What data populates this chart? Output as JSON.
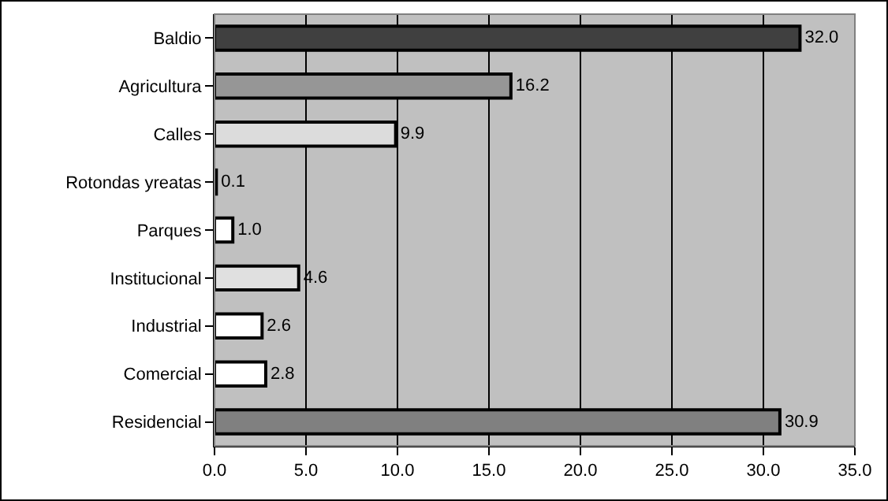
{
  "chart_data": {
    "type": "bar",
    "orientation": "horizontal",
    "categories": [
      "Baldio",
      "Agricultura",
      "Calles",
      "Rotondas yreatas",
      "Parques",
      "Institucional",
      "Industrial",
      "Comercial",
      "Residencial"
    ],
    "values": [
      32.0,
      16.2,
      9.9,
      0.1,
      1.0,
      4.6,
      2.6,
      2.8,
      30.9
    ],
    "colors": [
      "#404040",
      "#969696",
      "#dcdcdc",
      "#e6e6e6",
      "#ffffff",
      "#e0e0e0",
      "#ffffff",
      "#ffffff",
      "#808080"
    ],
    "value_labels": [
      "32.0",
      "16.2",
      "9.9",
      "0.1",
      "1.0",
      "4.6",
      "2.6",
      "2.8",
      "30.9"
    ],
    "xlim": [
      0,
      35
    ],
    "xticks": [
      {
        "value": 0,
        "label": "0.0"
      },
      {
        "value": 5,
        "label": "5.0"
      },
      {
        "value": 10,
        "label": "10.0"
      },
      {
        "value": 15,
        "label": "15.0"
      },
      {
        "value": 20,
        "label": "20.0"
      },
      {
        "value": 25,
        "label": "25.0"
      },
      {
        "value": 30,
        "label": "30.0"
      },
      {
        "value": 35,
        "label": "35.0"
      }
    ],
    "grid": "x"
  }
}
